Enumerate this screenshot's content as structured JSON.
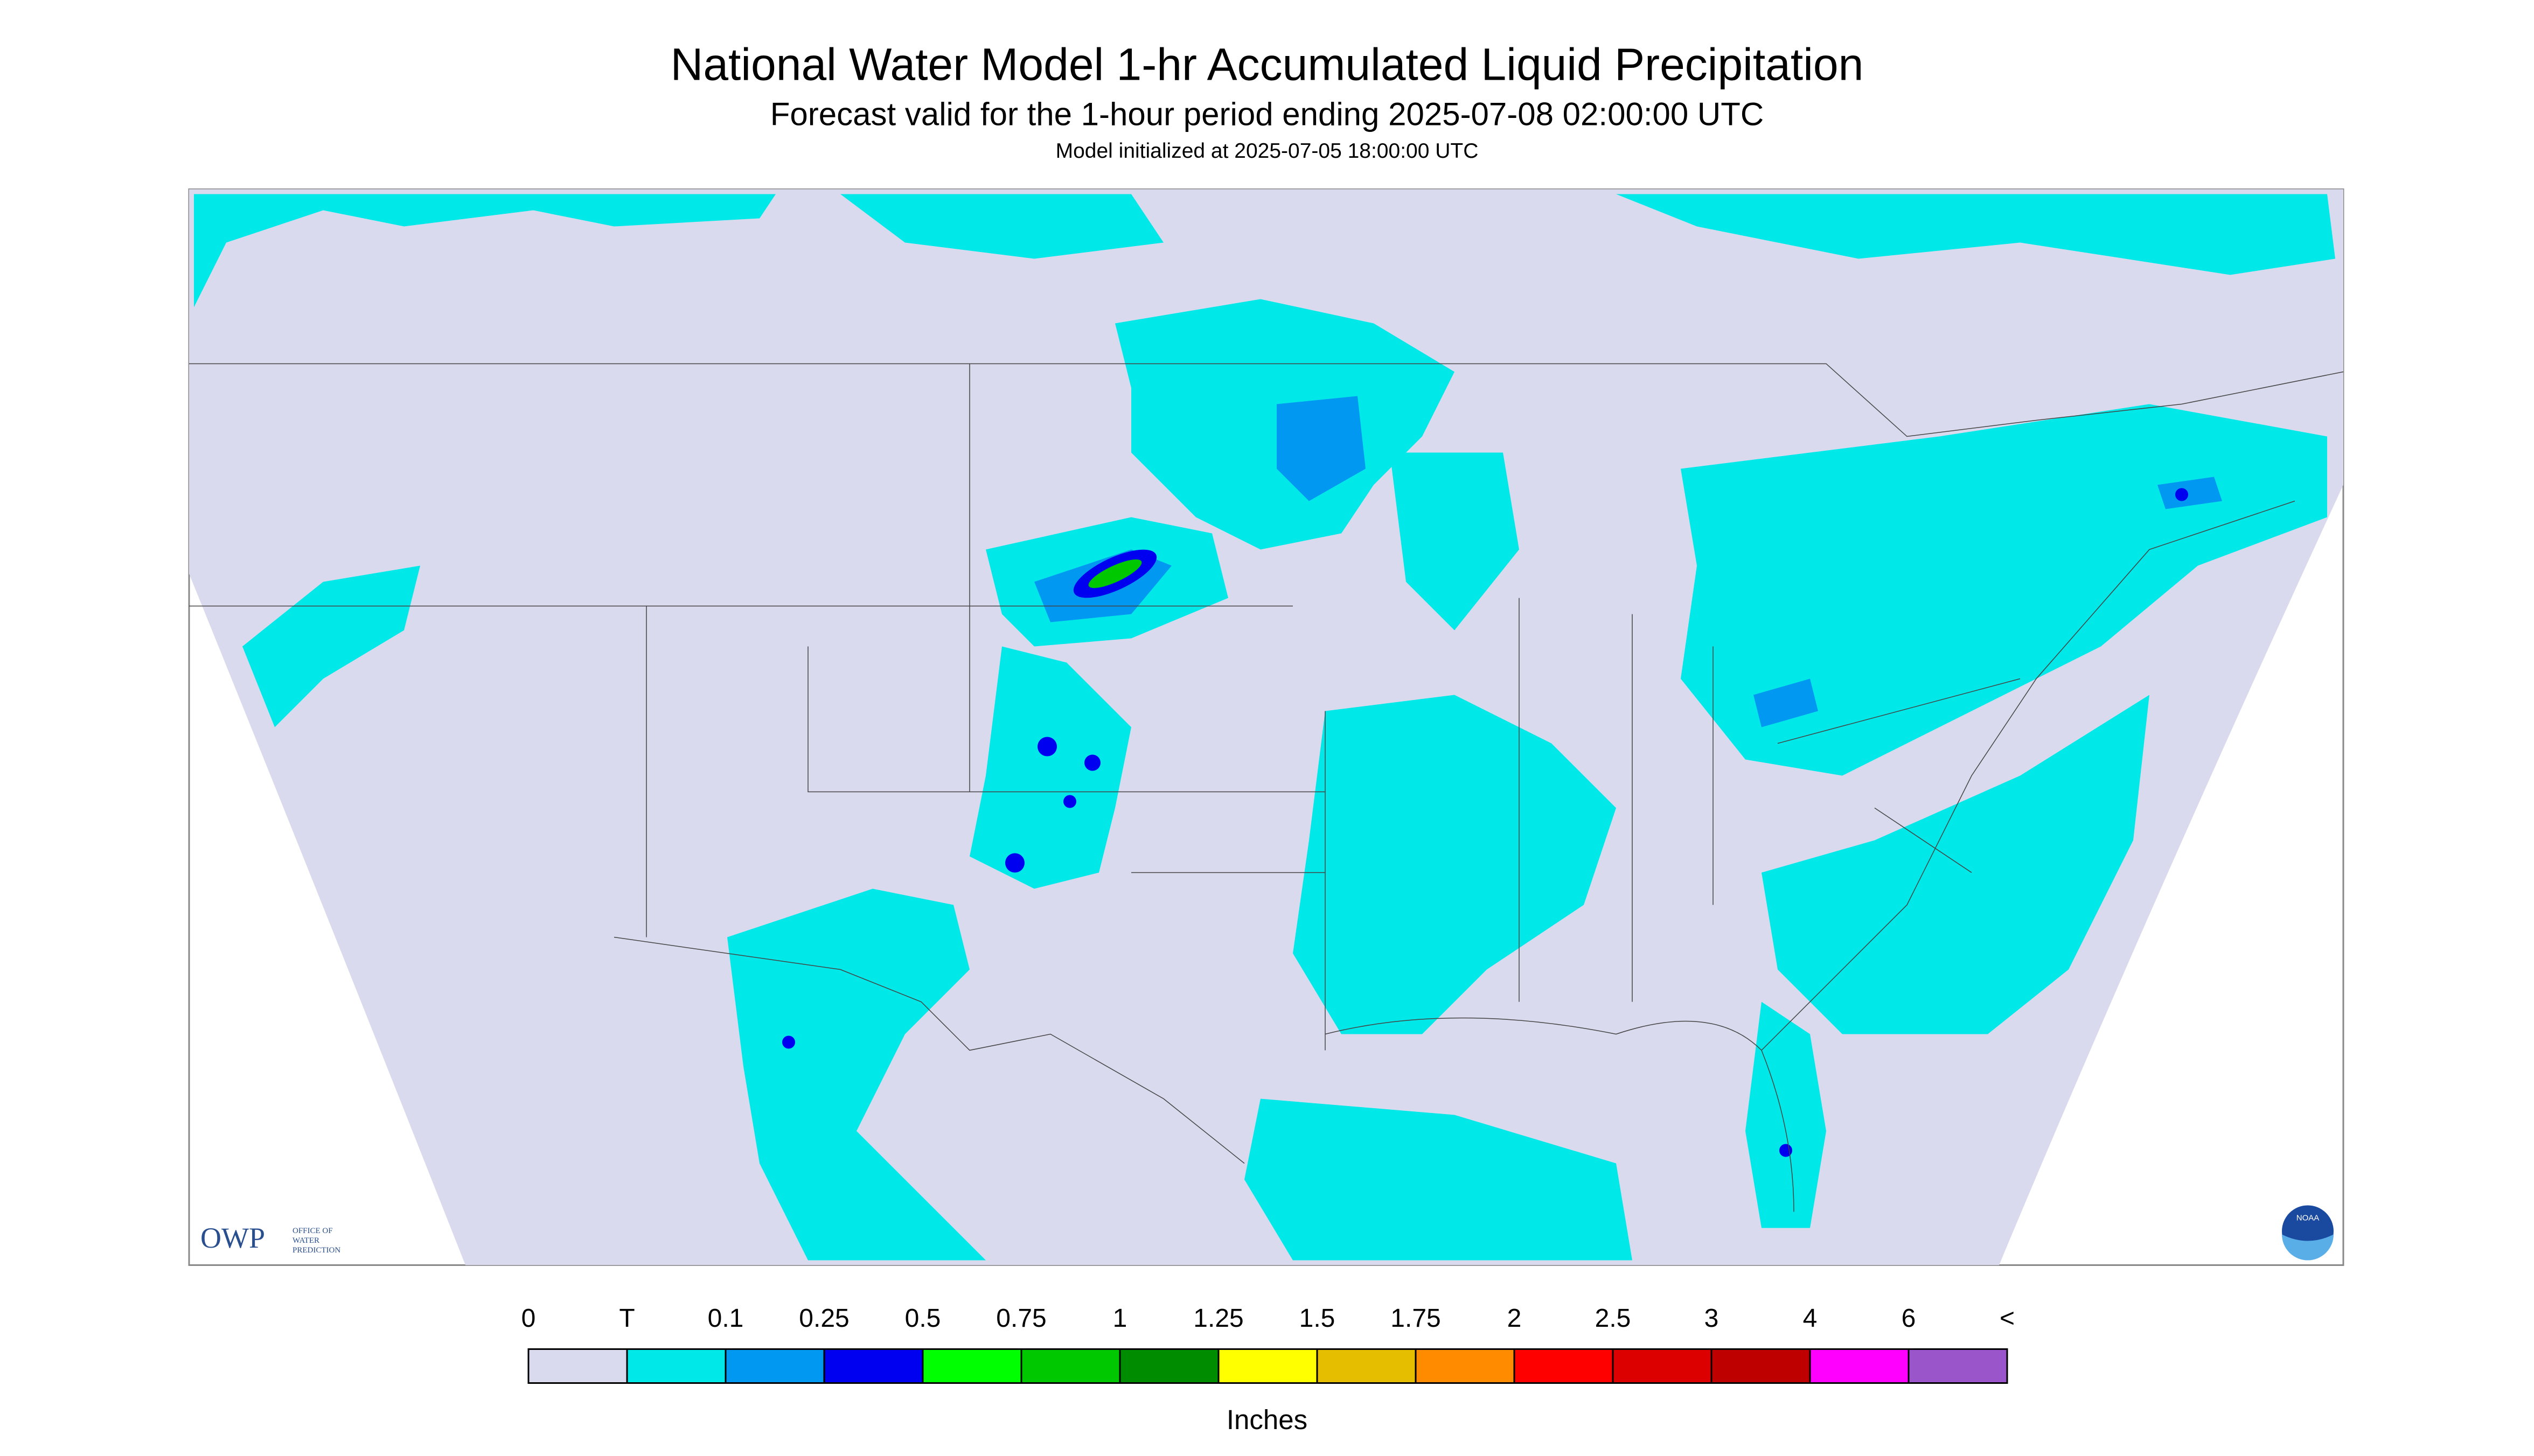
{
  "header": {
    "title": "National Water Model 1-hr Accumulated Liquid Precipitation",
    "subtitle": "Forecast valid for the 1-hour period ending 2025-07-08 02:00:00 UTC",
    "initialized": "Model initialized at 2025-07-05 18:00:00 UTC"
  },
  "legend": {
    "labels": [
      "0",
      "T",
      "0.1",
      "0.25",
      "0.5",
      "0.75",
      "1",
      "1.25",
      "1.5",
      "1.75",
      "2",
      "2.5",
      "3",
      "4",
      "6",
      "<"
    ],
    "colors": [
      "#dadaee",
      "#00e8e8",
      "#0098f0",
      "#0000f0",
      "#00ff00",
      "#00c800",
      "#008c00",
      "#ffff00",
      "#e6be00",
      "#ff8c00",
      "#ff0000",
      "#dc0000",
      "#be0000",
      "#ff00ff",
      "#9955c9"
    ],
    "unit": "Inches"
  },
  "logos": {
    "owp": "OWP",
    "owp_text": [
      "OFFICE OF",
      "WATER",
      "PREDICTION"
    ],
    "noaa": "NOAA"
  }
}
